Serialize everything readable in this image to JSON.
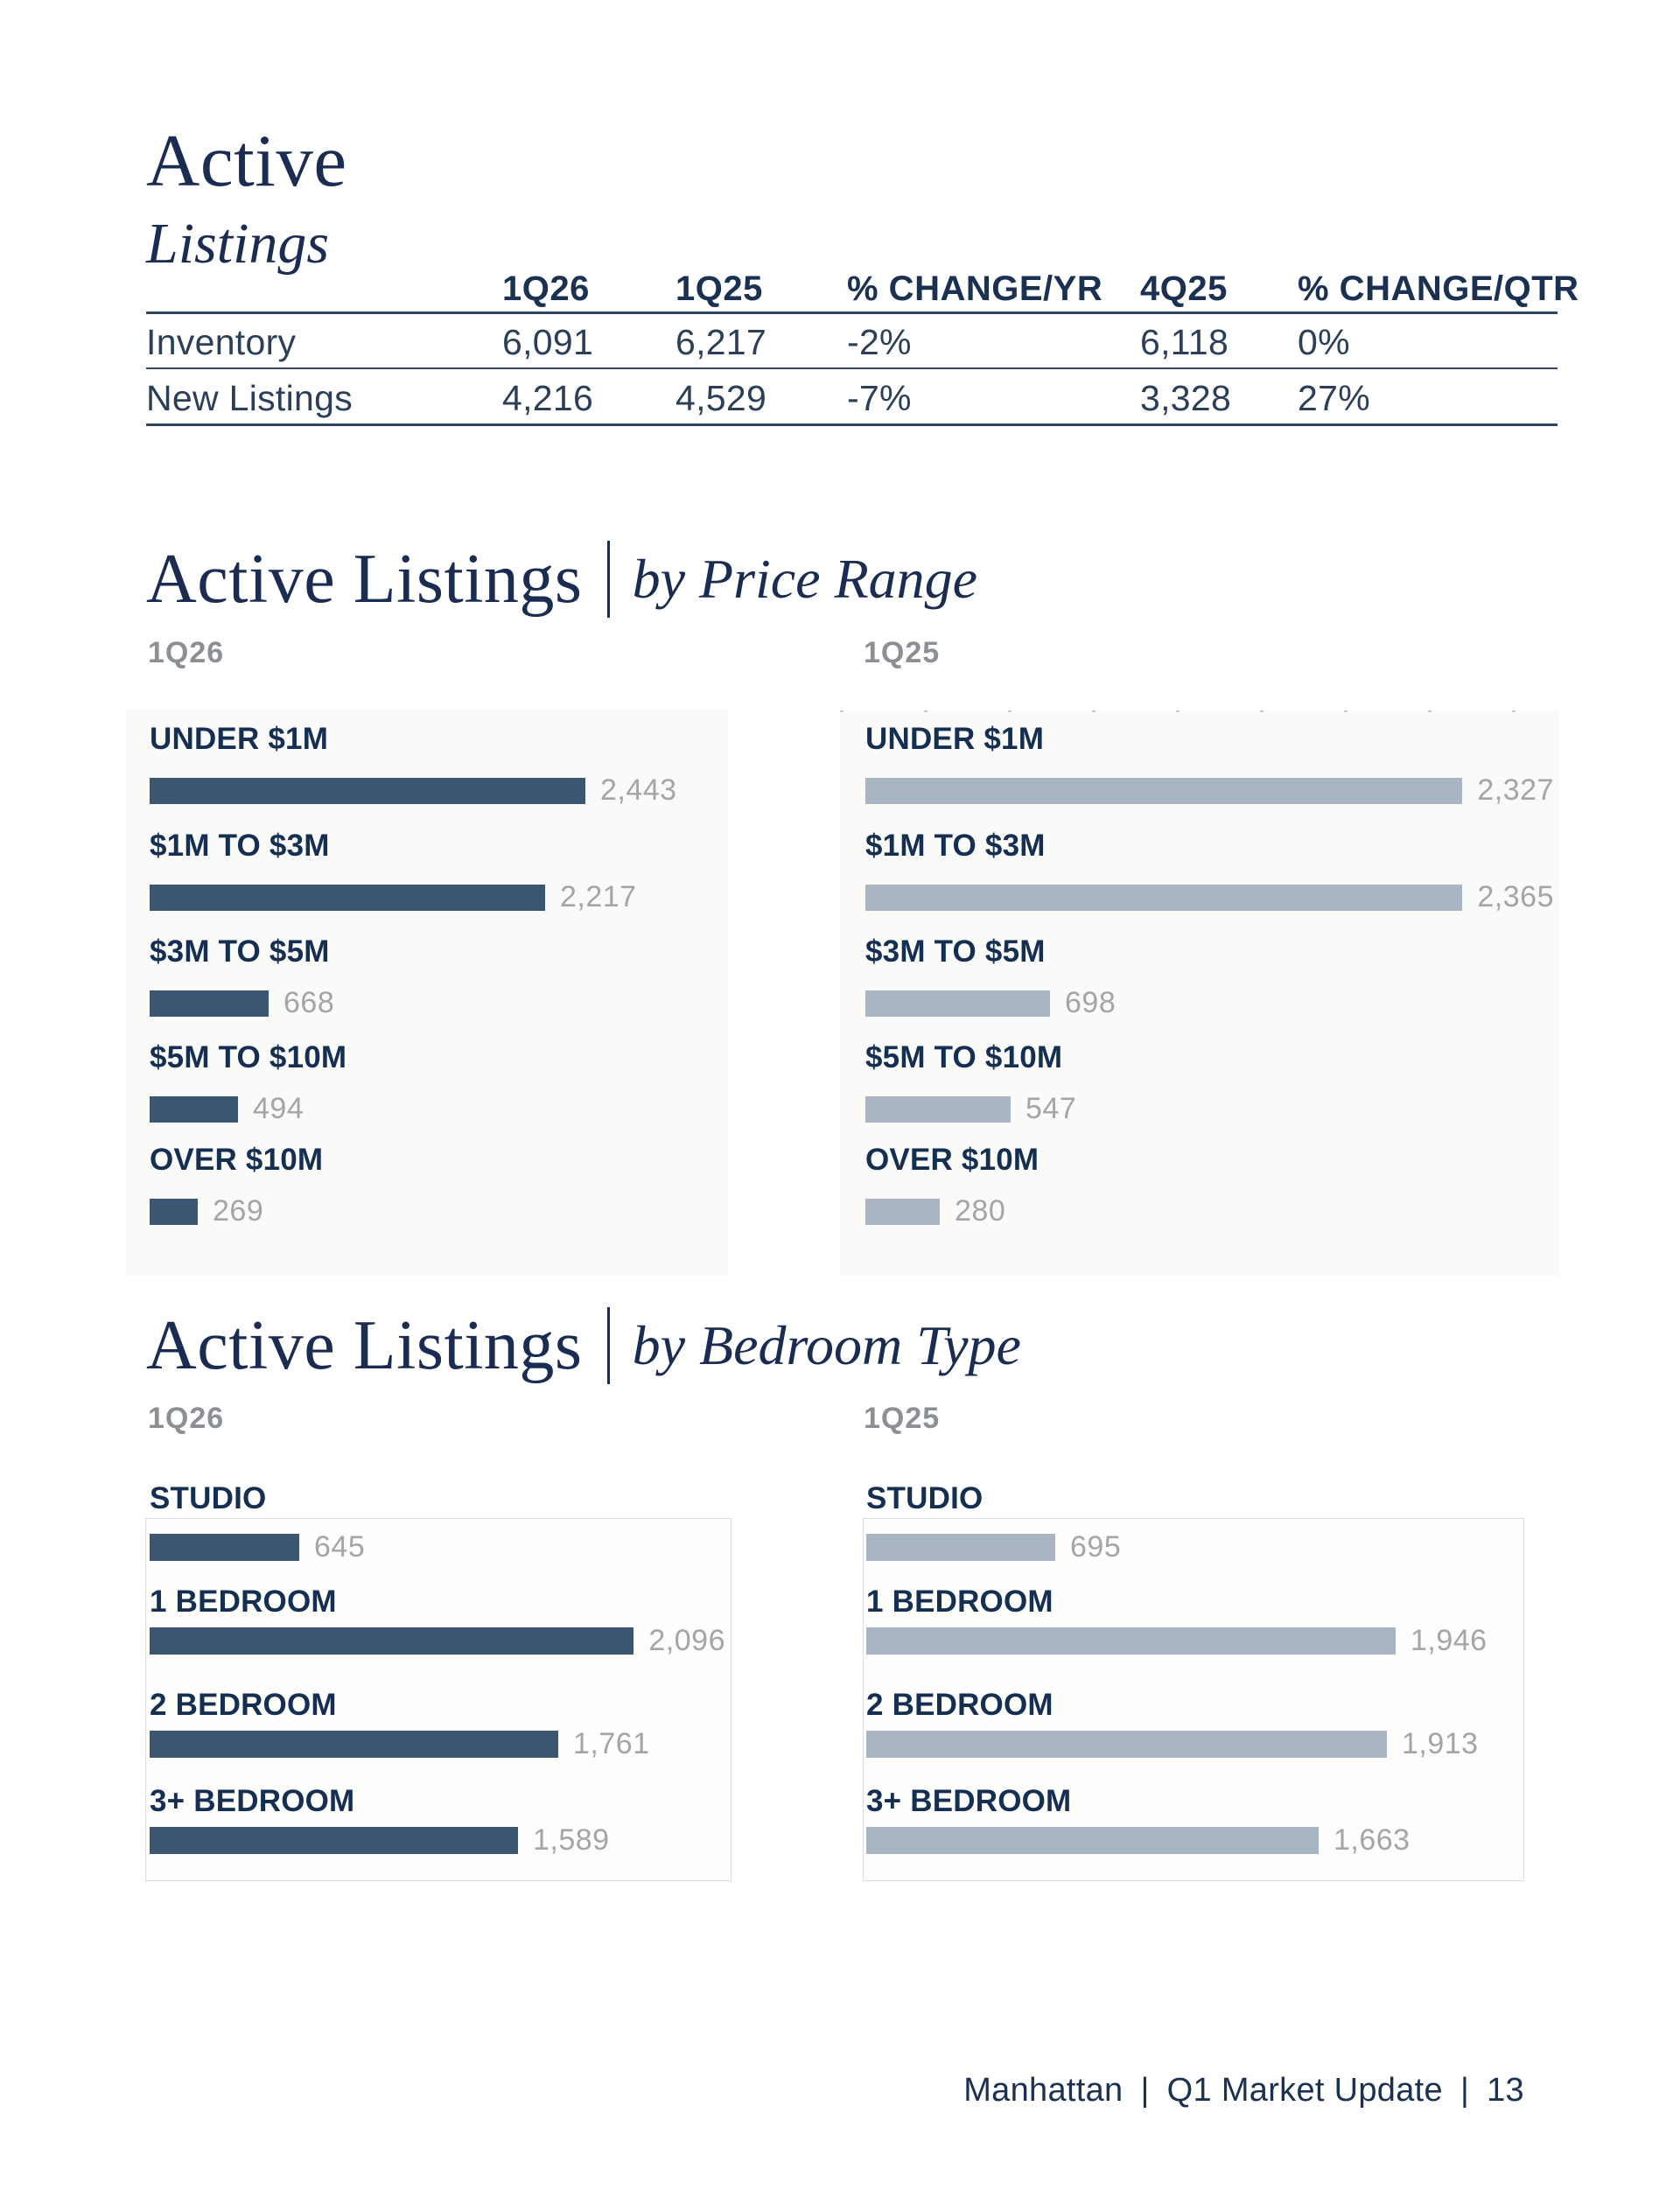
{
  "header": {
    "title": "Active",
    "subtitle": "Listings"
  },
  "sections": {
    "price_range": {
      "title": "Active Listings",
      "subtitle": "by Price Range",
      "left_quarter": "1Q26",
      "right_quarter": "1Q25"
    },
    "bedroom_type": {
      "title": "Active Listings",
      "subtitle": "by Bedroom Type",
      "left_quarter": "1Q26",
      "right_quarter": "1Q25"
    }
  },
  "colors": {
    "navy_text": "#1b2c52",
    "category_label_navy": "#142f52",
    "dark_bar": "#3c5570",
    "light_bar": "#a9b5c3",
    "value_gray": "#a5a5a5",
    "quarter_label_gray": "#8c9095"
  },
  "chart_data": [
    {
      "id": "price_range_1q26",
      "type": "bar",
      "orientation": "horizontal",
      "title": "Active Listings by Price Range",
      "subtitle": "1Q26",
      "categories": [
        "UNDER $1M",
        "$1M TO $3M",
        "$3M TO $5M",
        "$5M TO $10M",
        "OVER $10M"
      ],
      "values": [
        2443,
        2217,
        668,
        494,
        269
      ],
      "value_labels": [
        "2,443",
        "2,217",
        "668",
        "494",
        "269"
      ],
      "xlim": [
        0,
        2443
      ],
      "grid": false,
      "legend": "none",
      "bar_color": "#3c5570"
    },
    {
      "id": "price_range_1q25",
      "type": "bar",
      "orientation": "horizontal",
      "title": "Active Listings by Price Range",
      "subtitle": "1Q25",
      "categories": [
        "UNDER $1M",
        "$1M TO $3M",
        "$3M TO $5M",
        "$5M TO $10M",
        "OVER $10M"
      ],
      "values": [
        2327,
        2365,
        698,
        547,
        280
      ],
      "value_labels": [
        "2,327",
        "2,365",
        "698",
        "547",
        "280"
      ],
      "xlim": [
        0,
        2365
      ],
      "grid": false,
      "legend": "none",
      "bar_color": "#a9b5c3"
    },
    {
      "id": "bedroom_type_1q26",
      "type": "bar",
      "orientation": "horizontal",
      "title": "Active Listings by Bedroom Type",
      "subtitle": "1Q26",
      "categories": [
        "STUDIO",
        "1 BEDROOM",
        "2 BEDROOM",
        "3+ BEDROOM"
      ],
      "values": [
        645,
        2096,
        1761,
        1589
      ],
      "value_labels": [
        "645",
        "2,096",
        "1,761",
        "1,589"
      ],
      "xlim": [
        0,
        2096
      ],
      "grid": false,
      "legend": "none",
      "bar_color": "#3c5570"
    },
    {
      "id": "bedroom_type_1q25",
      "type": "bar",
      "orientation": "horizontal",
      "title": "Active Listings by Bedroom Type",
      "subtitle": "1Q25",
      "categories": [
        "STUDIO",
        "1 BEDROOM",
        "2 BEDROOM",
        "3+ BEDROOM"
      ],
      "values": [
        695,
        1946,
        1913,
        1663
      ],
      "value_labels": [
        "695",
        "1,946",
        "1,913",
        "1,663"
      ],
      "xlim": [
        0,
        1946
      ],
      "grid": false,
      "legend": "none",
      "bar_color": "#a9b5c3"
    },
    {
      "id": "active_listings_summary",
      "type": "table",
      "title": "Active Listings",
      "columns": [
        "1Q26",
        "1Q25",
        "% CHANGE/YR",
        "4Q25",
        "% CHANGE/QTR"
      ],
      "rows": [
        {
          "label": "Inventory",
          "cells": [
            "6,091",
            "6,217",
            "-2%",
            "6,118",
            "0%"
          ]
        },
        {
          "label": "New Listings",
          "cells": [
            "4,216",
            "4,529",
            "-7%",
            "3,328",
            "27%"
          ]
        }
      ]
    }
  ],
  "footer": {
    "region": "Manhattan",
    "separator": "|",
    "report": "Q1 Market Update",
    "page_number": "13"
  }
}
